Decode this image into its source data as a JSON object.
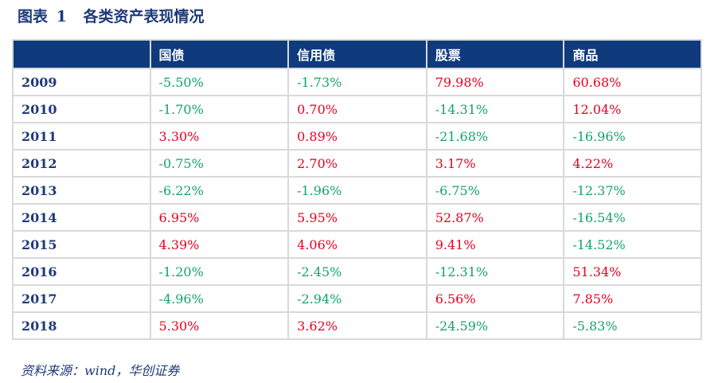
{
  "title": {
    "label": "图表",
    "number": "1",
    "text": "各类资产表现情况"
  },
  "table": {
    "headers": [
      "",
      "国债",
      "信用债",
      "股票",
      "商品"
    ],
    "rows": [
      {
        "year": "2009",
        "values": [
          "-5.50%",
          "-1.73%",
          "79.98%",
          "60.68%"
        ]
      },
      {
        "year": "2010",
        "values": [
          "-1.70%",
          "0.70%",
          "-14.31%",
          "12.04%"
        ]
      },
      {
        "year": "2011",
        "values": [
          "3.30%",
          "0.89%",
          "-21.68%",
          "-16.96%"
        ]
      },
      {
        "year": "2012",
        "values": [
          "-0.75%",
          "2.70%",
          "3.17%",
          "4.22%"
        ]
      },
      {
        "year": "2013",
        "values": [
          "-6.22%",
          "-1.96%",
          "-6.75%",
          "-12.37%"
        ]
      },
      {
        "year": "2014",
        "values": [
          "6.95%",
          "5.95%",
          "52.87%",
          "-16.54%"
        ]
      },
      {
        "year": "2015",
        "values": [
          "4.39%",
          "4.06%",
          "9.41%",
          "-14.52%"
        ]
      },
      {
        "year": "2016",
        "values": [
          "-1.20%",
          "-2.45%",
          "-12.31%",
          "51.34%"
        ]
      },
      {
        "year": "2017",
        "values": [
          "-4.96%",
          "-2.94%",
          "6.56%",
          "7.85%"
        ]
      },
      {
        "year": "2018",
        "values": [
          "5.30%",
          "3.62%",
          "-24.59%",
          "-5.83%"
        ]
      }
    ]
  },
  "source": "资料来源：wind，华创证券",
  "colors": {
    "header_bg": "#0f3b7c",
    "positive": "#e6001f",
    "negative": "#13a36a",
    "title": "#1f3a7a"
  }
}
